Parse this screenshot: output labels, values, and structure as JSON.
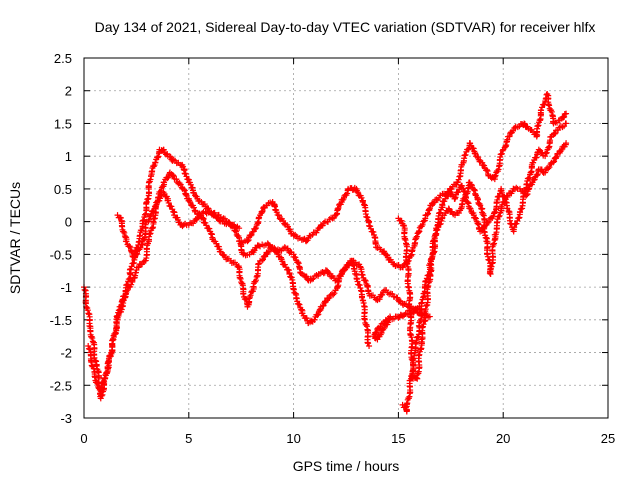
{
  "chart_data": {
    "type": "scatter",
    "title": "Day 134 of 2021, Sidereal Day-to-day VTEC variation (SDTVAR) for receiver hlfx",
    "xlabel": "GPS time / hours",
    "ylabel": "SDTVAR / TECUs",
    "xlim": [
      0,
      25
    ],
    "ylim": [
      -3,
      2.5
    ],
    "xticks": [
      0,
      5,
      10,
      15,
      20,
      25
    ],
    "xtick_labels": [
      "0",
      "5",
      "10",
      "15",
      "20",
      "25"
    ],
    "yticks": [
      -3,
      -2.5,
      -2,
      -1.5,
      -1,
      -0.5,
      0,
      0.5,
      1,
      1.5,
      2,
      2.5
    ],
    "ytick_labels": [
      "-3",
      "-2.5",
      "-2",
      "-1.5",
      "-1",
      "-0.5",
      "0",
      "0.5",
      "1",
      "1.5",
      "2",
      "2.5"
    ],
    "grid": true,
    "marker": "+",
    "marker_color": "#ff0000",
    "series": [
      {
        "values": [
          [
            0.0,
            -1.0
          ],
          [
            0.3,
            -1.6
          ],
          [
            0.6,
            -2.2
          ],
          [
            0.8,
            -2.6
          ],
          [
            1.0,
            -2.4
          ],
          [
            1.3,
            -2.0
          ],
          [
            1.6,
            -1.5
          ],
          [
            1.9,
            -1.2
          ],
          [
            2.2,
            -0.8
          ],
          [
            2.5,
            -0.4
          ],
          [
            2.8,
            -0.1
          ],
          [
            3.0,
            0.3
          ],
          [
            3.2,
            0.7
          ],
          [
            3.4,
            0.9
          ],
          [
            3.6,
            1.1
          ],
          [
            3.8,
            1.1
          ],
          [
            4.0,
            1.0
          ],
          [
            4.2,
            0.95
          ],
          [
            4.5,
            0.9
          ],
          [
            4.8,
            0.8
          ],
          [
            5.0,
            0.6
          ],
          [
            5.3,
            0.4
          ],
          [
            5.6,
            0.3
          ],
          [
            6.0,
            0.15
          ],
          [
            6.4,
            0.1
          ],
          [
            6.8,
            0.0
          ],
          [
            7.2,
            -0.1
          ],
          [
            7.4,
            -0.3
          ],
          [
            7.6,
            -0.5
          ],
          [
            7.9,
            -0.5
          ],
          [
            8.2,
            -0.4
          ],
          [
            8.5,
            -0.35
          ],
          [
            8.8,
            -0.35
          ],
          [
            9.2,
            -0.45
          ],
          [
            9.6,
            -0.4
          ],
          [
            10.0,
            -0.5
          ],
          [
            10.4,
            -0.8
          ],
          [
            10.8,
            -0.9
          ],
          [
            11.2,
            -0.8
          ],
          [
            11.6,
            -0.75
          ],
          [
            12.0,
            -0.9
          ],
          [
            12.4,
            -0.75
          ],
          [
            12.8,
            -0.6
          ],
          [
            13.2,
            -0.7
          ],
          [
            13.6,
            -1.1
          ],
          [
            14.0,
            -1.2
          ],
          [
            14.4,
            -1.05
          ],
          [
            14.8,
            -1.15
          ],
          [
            15.2,
            -1.25
          ],
          [
            15.6,
            -1.3
          ],
          [
            16.0,
            -1.4
          ],
          [
            16.5,
            -1.45
          ]
        ]
      },
      {
        "values": [
          [
            0.2,
            -1.9
          ],
          [
            0.5,
            -2.3
          ],
          [
            0.8,
            -2.7
          ],
          [
            1.1,
            -2.3
          ],
          [
            1.4,
            -1.8
          ],
          [
            1.7,
            -1.3
          ],
          [
            2.0,
            -1.1
          ],
          [
            2.3,
            -0.9
          ],
          [
            2.6,
            -0.7
          ],
          [
            2.9,
            -0.6
          ],
          [
            3.1,
            -0.3
          ],
          [
            3.3,
            0.0
          ],
          [
            3.5,
            0.3
          ],
          [
            3.8,
            0.6
          ],
          [
            4.1,
            0.75
          ],
          [
            4.4,
            0.65
          ],
          [
            4.7,
            0.5
          ],
          [
            5.0,
            0.35
          ],
          [
            5.3,
            0.15
          ],
          [
            5.7,
            0.05
          ],
          [
            6.2,
            -0.3
          ],
          [
            6.6,
            -0.5
          ],
          [
            7.0,
            -0.6
          ],
          [
            7.4,
            -0.7
          ],
          [
            7.6,
            -1.1
          ],
          [
            7.8,
            -1.3
          ],
          [
            8.1,
            -1.0
          ],
          [
            8.4,
            -0.6
          ],
          [
            8.7,
            -0.5
          ],
          [
            9.0,
            -0.4
          ],
          [
            9.4,
            -0.55
          ],
          [
            9.8,
            -0.8
          ],
          [
            10.1,
            -1.1
          ],
          [
            10.4,
            -1.4
          ],
          [
            10.7,
            -1.55
          ],
          [
            11.0,
            -1.5
          ],
          [
            11.3,
            -1.3
          ],
          [
            11.6,
            -1.2
          ],
          [
            12.0,
            -1.05
          ],
          [
            12.3,
            -0.8
          ],
          [
            12.7,
            -0.6
          ],
          [
            13.0,
            -0.8
          ],
          [
            13.3,
            -1.2
          ],
          [
            13.6,
            -1.9
          ]
        ]
      },
      {
        "values": [
          [
            1.6,
            0.1
          ],
          [
            1.8,
            0.0
          ],
          [
            2.0,
            -0.3
          ],
          [
            2.4,
            -0.55
          ],
          [
            2.8,
            -0.35
          ],
          [
            3.0,
            0.0
          ],
          [
            3.4,
            0.2
          ],
          [
            3.7,
            0.45
          ],
          [
            4.0,
            0.35
          ],
          [
            4.3,
            0.1
          ],
          [
            4.6,
            -0.05
          ],
          [
            5.0,
            -0.05
          ],
          [
            5.4,
            0.05
          ],
          [
            5.8,
            0.15
          ],
          [
            6.2,
            0.1
          ],
          [
            6.6,
            0.0
          ],
          [
            7.0,
            -0.05
          ],
          [
            7.4,
            -0.1
          ]
        ]
      },
      {
        "values": [
          [
            7.5,
            -0.3
          ],
          [
            7.8,
            -0.3
          ],
          [
            8.1,
            -0.15
          ],
          [
            8.4,
            0.1
          ],
          [
            8.7,
            0.25
          ],
          [
            9.0,
            0.3
          ],
          [
            9.3,
            0.1
          ],
          [
            9.6,
            -0.05
          ],
          [
            10.0,
            -0.2
          ],
          [
            10.3,
            -0.25
          ],
          [
            10.6,
            -0.3
          ],
          [
            10.9,
            -0.2
          ],
          [
            11.2,
            -0.1
          ],
          [
            11.6,
            0.0
          ],
          [
            12.0,
            0.1
          ],
          [
            12.3,
            0.3
          ],
          [
            12.6,
            0.5
          ],
          [
            13.0,
            0.5
          ],
          [
            13.3,
            0.3
          ],
          [
            13.6,
            0.0
          ],
          [
            14.0,
            -0.4
          ],
          [
            14.4,
            -0.5
          ],
          [
            14.8,
            -0.65
          ],
          [
            15.1,
            -0.7
          ],
          [
            15.4,
            -0.65
          ],
          [
            15.7,
            -0.4
          ],
          [
            16.0,
            -0.15
          ],
          [
            16.3,
            0.1
          ],
          [
            16.6,
            0.25
          ],
          [
            17.0,
            0.4
          ],
          [
            17.4,
            0.45
          ],
          [
            17.8,
            0.6
          ],
          [
            18.1,
            0.9
          ],
          [
            18.4,
            1.2
          ],
          [
            18.7,
            1.0
          ],
          [
            19.0,
            0.9
          ],
          [
            19.3,
            0.7
          ],
          [
            19.6,
            0.65
          ],
          [
            20.0,
            1.1
          ],
          [
            20.3,
            1.3
          ],
          [
            20.6,
            1.45
          ],
          [
            21.0,
            1.5
          ],
          [
            21.3,
            1.4
          ],
          [
            21.6,
            1.3
          ],
          [
            21.8,
            1.7
          ],
          [
            22.1,
            1.95
          ],
          [
            22.4,
            1.5
          ],
          [
            22.7,
            1.55
          ],
          [
            23.0,
            1.65
          ]
        ]
      },
      {
        "values": [
          [
            15.0,
            0.05
          ],
          [
            15.3,
            -0.1
          ],
          [
            15.5,
            -1.0
          ],
          [
            15.7,
            -2.4
          ],
          [
            15.9,
            -2.4
          ],
          [
            16.1,
            -1.8
          ],
          [
            16.3,
            -1.4
          ],
          [
            16.5,
            -0.8
          ],
          [
            16.8,
            -0.2
          ],
          [
            17.1,
            0.1
          ],
          [
            17.4,
            0.2
          ],
          [
            17.7,
            0.1
          ],
          [
            18.0,
            0.2
          ],
          [
            18.4,
            0.6
          ],
          [
            18.7,
            0.4
          ],
          [
            19.0,
            0.2
          ],
          [
            19.2,
            -0.3
          ],
          [
            19.4,
            -0.8
          ],
          [
            19.6,
            -0.2
          ],
          [
            19.9,
            0.2
          ],
          [
            20.2,
            0.4
          ],
          [
            20.5,
            0.5
          ],
          [
            20.8,
            0.5
          ],
          [
            21.1,
            0.4
          ],
          [
            21.4,
            0.6
          ],
          [
            21.7,
            0.8
          ],
          [
            22.0,
            0.75
          ],
          [
            22.3,
            0.9
          ],
          [
            22.7,
            1.05
          ],
          [
            23.0,
            1.2
          ]
        ]
      },
      {
        "values": [
          [
            15.2,
            -2.8
          ],
          [
            15.4,
            -2.9
          ],
          [
            15.6,
            -2.4
          ],
          [
            15.8,
            -2.0
          ],
          [
            16.0,
            -1.6
          ],
          [
            16.2,
            -1.1
          ],
          [
            16.5,
            -0.7
          ],
          [
            16.8,
            -0.1
          ],
          [
            17.1,
            0.25
          ],
          [
            17.4,
            0.45
          ],
          [
            17.7,
            0.35
          ],
          [
            18.0,
            0.55
          ],
          [
            18.3,
            0.3
          ],
          [
            18.6,
            0.1
          ],
          [
            18.9,
            -0.15
          ],
          [
            19.2,
            -0.05
          ],
          [
            19.6,
            0.15
          ],
          [
            19.9,
            0.5
          ],
          [
            20.2,
            0.2
          ],
          [
            20.5,
            -0.15
          ],
          [
            20.8,
            0.15
          ],
          [
            21.1,
            0.5
          ],
          [
            21.4,
            0.9
          ],
          [
            21.7,
            1.1
          ],
          [
            22.0,
            1.0
          ],
          [
            22.3,
            1.3
          ],
          [
            22.6,
            1.4
          ],
          [
            23.0,
            1.5
          ]
        ]
      },
      {
        "values": [
          [
            14.6,
            -1.45
          ],
          [
            14.2,
            -1.7
          ],
          [
            14.0,
            -1.8
          ],
          [
            13.8,
            -1.75
          ],
          [
            14.4,
            -1.5
          ],
          [
            15.6,
            -1.4
          ],
          [
            16.0,
            -1.3
          ]
        ]
      }
    ]
  }
}
